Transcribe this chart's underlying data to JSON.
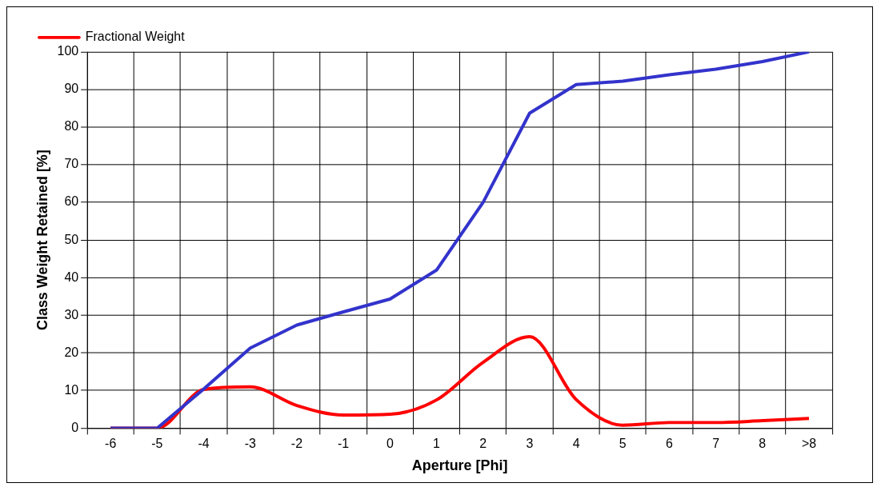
{
  "chart_data": {
    "type": "line",
    "xlabel": "Aperture [Phi]",
    "ylabel": "Class Weight Retained [%]",
    "categories": [
      "-6",
      "-5",
      "-4",
      "-3",
      "-2",
      "-1",
      "0",
      "1",
      "2",
      "3",
      "4",
      "5",
      "6",
      "7",
      "8",
      ">8"
    ],
    "series": [
      {
        "color": "#3333cc",
        "values": [
          0,
          0,
          10.4,
          21.3,
          27.4,
          30.9,
          34.3,
          42,
          60,
          83.7,
          91.3,
          92.2,
          93.9,
          95.4,
          97.4,
          100
        ]
      },
      {
        "name": "Fractional Weight",
        "color": "#ff0000",
        "values": [
          0,
          0,
          10.3,
          11,
          6,
          3.5,
          3.7,
          7.5,
          17.5,
          24.3,
          7.6,
          0.8,
          1.5,
          1.5,
          2,
          2.6
        ]
      }
    ],
    "ylim": [
      0,
      100
    ],
    "yticks": [
      0,
      10,
      20,
      30,
      40,
      50,
      60,
      70,
      80,
      90,
      100
    ],
    "grid": true,
    "legend": "top left",
    "marker": "none",
    "line_style": "solid"
  }
}
